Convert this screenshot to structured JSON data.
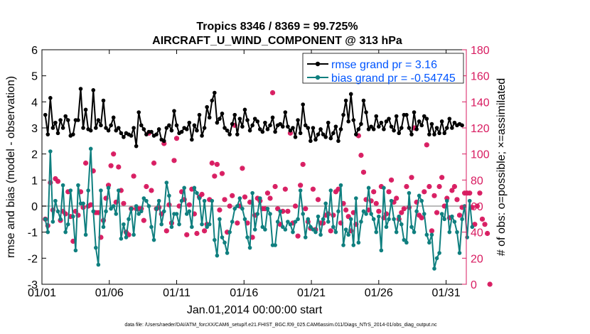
{
  "chart_data": {
    "type": "line",
    "title": "Tropics 8346 / 8369 = 99.725%",
    "subtitle": "AIRCRAFT_U_WIND_COMPONENT @ 313 hPa",
    "xlabel": "Jan.01,2014 00:00:00 start",
    "ylabel": "rmse and bias (model - observation)",
    "y2label": "# of obs: o=possible; ×=assimilated",
    "footnote": "data file: /Users/raeder/DAI/ATM_forcXX/CAM6_setup/f.e21.FHIST_BGC.f09_025.CAM6assim.011/Diags_NTrS_2014-01/obs_diag_output.nc",
    "xlim": [
      0,
      31.5
    ],
    "ylim": [
      -3,
      6
    ],
    "y2lim": [
      0,
      180
    ],
    "x_ticks": [
      0,
      5,
      10,
      15,
      20,
      25,
      30
    ],
    "x_tick_labels": [
      "01/01",
      "01/06",
      "01/11",
      "01/16",
      "01/21",
      "01/26",
      "01/31"
    ],
    "y_ticks": [
      -3,
      -2,
      -1,
      0,
      1,
      2,
      3,
      4,
      5,
      6
    ],
    "y_tick_labels": [
      "-3",
      "-2",
      "-1",
      "0",
      "1",
      "2",
      "3",
      "4",
      "5",
      "6"
    ],
    "y2_ticks": [
      0,
      20,
      40,
      60,
      80,
      100,
      120,
      140,
      160,
      180
    ],
    "y2_tick_labels": [
      "0",
      "20",
      "40",
      "60",
      "80",
      "100",
      "120",
      "140",
      "160",
      "180"
    ],
    "colors": {
      "rmse": "#000000",
      "bias": "#0f7f7f",
      "obs": "#d81b60",
      "zero": "#bbbbbb",
      "legend_text": "#0055ff"
    },
    "series": [
      {
        "name": "rmse grand pr = 3.16",
        "values": [
          3.5,
          2.75,
          4.15,
          3.0,
          3.2,
          2.8,
          3.3,
          3.0,
          3.45,
          3.3,
          2.7,
          2.75,
          3.3,
          3.3,
          4.5,
          3.0,
          3.7,
          2.95,
          2.9,
          4.45,
          3.0,
          3.3,
          3.1,
          4.05,
          3.0,
          2.9,
          3.1,
          3.4,
          2.9,
          3.0,
          2.8,
          2.65,
          2.8,
          2.75,
          2.7,
          3.0,
          2.3,
          3.6,
          3.1,
          2.95,
          2.75,
          2.85,
          2.85,
          2.7,
          2.75,
          2.95,
          2.55,
          2.5,
          3.0,
          3.1,
          2.9,
          3.65,
          3.1,
          2.8,
          2.85,
          3.0,
          2.95,
          3.2,
          2.55,
          3.1,
          2.9,
          3.5,
          2.7,
          3.0,
          3.8,
          3.4,
          4.05,
          4.35,
          3.2,
          3.35,
          3.55,
          3.0,
          2.9,
          2.75,
          3.15,
          3.5,
          2.75,
          3.35,
          3.05,
          3.7,
          3.3,
          2.9,
          3.1,
          3.35,
          3.25,
          2.95,
          2.85,
          3.2,
          2.95,
          3.1,
          3.4,
          2.85,
          3.1,
          3.15,
          3.05,
          3.6,
          3.05,
          2.9,
          3.0,
          2.65,
          3.3,
          2.8,
          3.9,
          3.1,
          3.0,
          2.5,
          3.0,
          2.55,
          2.75,
          2.95,
          2.75,
          2.65,
          3.2,
          2.6,
          2.8,
          3.05,
          2.5,
          2.95,
          3.5,
          4.05,
          3.25,
          4.3,
          3.3,
          2.75,
          2.95,
          3.15,
          4.05,
          3.6,
          2.95,
          3.05,
          2.95,
          3.45,
          3.05,
          3.2,
          2.95,
          3.25,
          3.35,
          3.05,
          2.9,
          3.45,
          2.8,
          3.0,
          3.5,
          3.5,
          3.0,
          2.75,
          3.6,
          2.95,
          3.25,
          3.1,
          3.45,
          3.35,
          2.75,
          3.15,
          2.75,
          3.0,
          2.8,
          3.25,
          2.8,
          3.0,
          3.35,
          3.0,
          3.2,
          3.1,
          3.15,
          3.1
        ],
        "color": "#000000"
      },
      {
        "name": "bias grand pr = -0.54745",
        "values": [
          -0.5,
          -1.0,
          2.1,
          -0.6,
          0.2,
          -0.2,
          -0.5,
          0.8,
          -1.0,
          -0.7,
          0.6,
          -0.4,
          -1.7,
          0.8,
          0.1,
          0.1,
          -1.1,
          0.6,
          2.2,
          -0.2,
          -1.6,
          -2.25,
          0.6,
          -0.8,
          -0.2,
          0.7,
          -0.1,
          0.0,
          -0.3,
          0.6,
          -1.25,
          -0.7,
          -1.2,
          -0.5,
          -0.1,
          -1.1,
          0.0,
          -0.3,
          -0.2,
          0.3,
          0.2,
          0.0,
          -0.8,
          -1.3,
          -0.1,
          0.2,
          -0.7,
          -0.2,
          0.9,
          0.4,
          -0.8,
          -0.3,
          -0.3,
          -0.7,
          0.2,
          0.7,
          -0.3,
          -0.2,
          -0.8,
          0.7,
          0.5,
          0.3,
          -0.7,
          0.2,
          -0.8,
          -0.7,
          0.2,
          -1.3,
          -1.9,
          -0.5,
          -1.2,
          -1.4,
          -1.8,
          -1.0,
          -0.6,
          -0.1,
          0.0,
          0.3,
          -0.1,
          -0.5,
          -1.2,
          -1.6,
          0.5,
          -0.9,
          -0.3,
          0.3,
          -0.8,
          -0.9,
          -0.1,
          -0.3,
          -1.5,
          -1.5,
          -0.6,
          -0.2,
          -0.8,
          -0.9,
          -0.6,
          -0.7,
          -1.0,
          -0.6,
          -0.5,
          0.6,
          -0.3,
          -1.2,
          -0.5,
          -0.8,
          -0.9,
          -1.0,
          -0.4,
          -1.1,
          -0.5,
          0.1,
          -0.6,
          0.6,
          -0.8,
          -1.0,
          -0.2,
          0.8,
          -1.5,
          -0.9,
          -1.1,
          -0.5,
          -1.5,
          0.3,
          -1.4,
          -0.6,
          -0.2,
          -0.3,
          0.7,
          -0.3,
          -0.5,
          -1.0,
          -0.4,
          -1.7,
          0.7,
          -0.8,
          -0.5,
          0.2,
          -0.5,
          -1.0,
          -0.4,
          -0.7,
          -1.3,
          -1.4,
          0.5,
          -0.8,
          -1.0,
          -0.2,
          0.4,
          0.2,
          -0.3,
          -1.1,
          -1.4,
          -1.1,
          -2.4,
          -2.0,
          -1.8,
          -0.3,
          -0.5,
          0.2,
          -1.0,
          -0.4,
          -0.6,
          -1.0,
          -1.8,
          -0.5,
          0.0,
          -1.2,
          0.2,
          -0.8
        ],
        "color": "#0f7f7f"
      }
    ],
    "possible": {
      "name": "# of obs possible",
      "values": [
        50,
        45,
        78,
        57,
        81,
        79,
        49,
        56,
        54,
        71,
        52,
        33,
        56,
        53,
        71,
        59,
        93,
        60,
        61,
        87,
        55,
        55,
        36,
        49,
        66,
        76,
        91,
        100,
        63,
        90,
        72,
        62,
        40,
        38,
        58,
        83,
        58,
        58,
        58,
        49,
        75,
        116,
        72,
        93,
        58,
        59,
        54,
        108,
        41,
        61,
        47,
        95,
        112,
        60,
        71,
        65,
        38,
        61,
        73,
        54,
        39,
        67,
        69,
        41,
        46,
        65,
        93,
        83,
        92,
        57,
        85,
        65,
        40,
        60,
        68,
        122,
        47,
        60,
        89,
        67,
        47,
        63,
        36,
        53,
        66,
        64,
        58,
        58,
        70,
        66,
        147,
        75,
        58,
        46,
        56,
        73,
        56,
        116,
        47,
        60,
        37,
        76,
        92,
        58,
        48,
        43,
        73,
        42,
        65,
        47,
        47,
        53,
        54,
        41,
        53,
        71,
        73,
        47,
        62,
        57,
        52,
        41,
        55,
        46,
        114,
        99,
        86,
        65,
        57,
        64,
        71,
        62,
        56,
        75,
        51,
        54,
        71,
        80,
        63,
        66,
        50,
        55,
        58,
        75,
        59,
        82,
        120,
        63,
        53,
        51,
        71,
        107,
        75,
        41,
        68,
        55,
        75,
        82,
        60,
        66,
        51,
        72,
        75,
        65,
        53,
        59,
        70,
        70,
        70,
        59,
        46,
        60,
        70,
        50,
        46,
        39,
        0
      ],
      "color": "#d81b60"
    },
    "assimilated": {
      "name": "# of obs assimilated",
      "values": [
        50,
        45,
        78,
        57,
        81,
        79,
        49,
        56,
        54,
        71,
        52,
        33,
        56,
        53,
        71,
        59,
        93,
        60,
        61,
        87,
        55,
        55,
        36,
        49,
        66,
        76,
        91,
        100,
        63,
        90,
        72,
        62,
        40,
        38,
        58,
        83,
        58,
        58,
        58,
        49,
        75,
        116,
        72,
        93,
        58,
        59,
        54,
        108,
        41,
        61,
        47,
        95,
        112,
        60,
        71,
        65,
        38,
        61,
        73,
        54,
        39,
        67,
        69,
        41,
        46,
        65,
        93,
        83,
        92,
        57,
        85,
        65,
        40,
        60,
        68,
        122,
        47,
        60,
        89,
        67,
        47,
        63,
        36,
        53,
        66,
        64,
        58,
        58,
        70,
        66,
        147,
        75,
        58,
        46,
        56,
        73,
        56,
        116,
        47,
        60,
        37,
        76,
        92,
        58,
        48,
        43,
        73,
        42,
        65,
        47,
        47,
        53,
        54,
        41,
        53,
        71,
        73,
        47,
        62,
        57,
        52,
        41,
        55,
        46,
        114,
        99,
        86,
        65,
        57,
        64,
        71,
        62,
        56,
        75,
        51,
        54,
        71,
        80,
        63,
        66,
        50,
        55,
        58,
        75,
        59,
        82,
        120,
        63,
        53,
        51,
        71,
        107,
        75,
        41,
        68,
        55,
        75,
        82,
        60,
        66,
        51,
        72,
        75,
        65,
        53,
        59,
        70,
        70,
        70,
        59,
        46,
        60,
        70,
        50,
        46,
        39,
        0
      ],
      "color": "#d81b60"
    },
    "legend": {
      "position": "top-right",
      "entries": [
        "rmse grand pr = 3.16",
        "bias grand pr = -0.54745"
      ]
    }
  }
}
